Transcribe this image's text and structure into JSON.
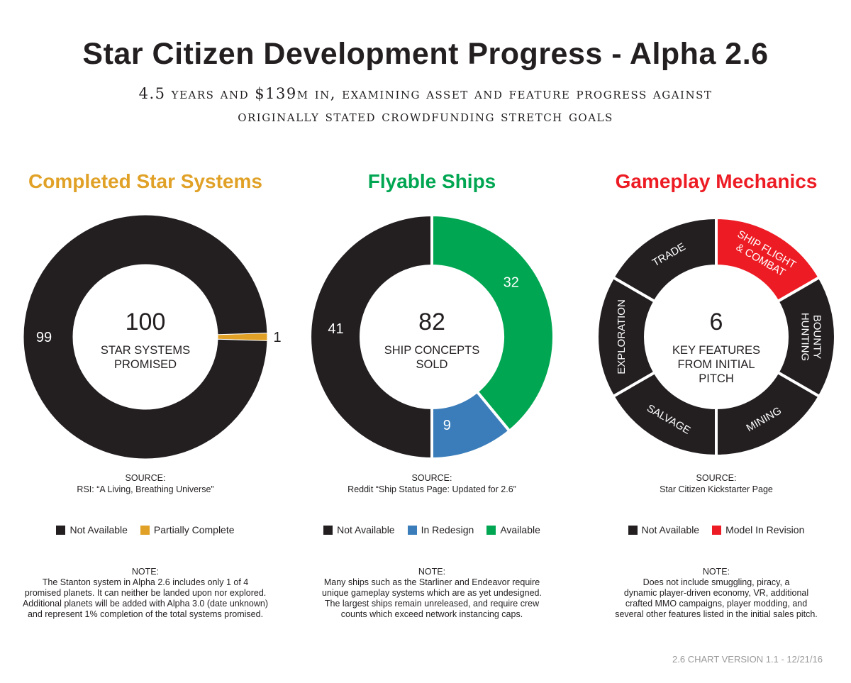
{
  "title": "Star Citizen Development Progress - Alpha 2.6",
  "subtitle": [
    "4.5 years and $139m in, examining asset and feature progress against",
    "originally stated crowdfunding stretch goals"
  ],
  "version": "2.6 CHART VERSION 1.1 - 12/21/16",
  "chart_data": [
    {
      "type": "pie",
      "title": "Completed Star Systems",
      "title_color": "#e0a126",
      "center_number": "100",
      "center_label": [
        "STAR SYSTEMS",
        "PROMISED"
      ],
      "slices": [
        {
          "label": "Partially Complete",
          "value": 1,
          "color": "#e0a126",
          "data_label": "1"
        },
        {
          "label": "Not Available",
          "value": 99,
          "color": "#231f20",
          "data_label": "99"
        }
      ],
      "source": [
        "SOURCE:",
        "RSI: “A Living, Breathing Universe”"
      ],
      "legend": [
        {
          "label": "Not Available",
          "color": "#231f20"
        },
        {
          "label": "Partially Complete",
          "color": "#e0a126"
        }
      ],
      "note": [
        "NOTE:",
        "The Stanton system in Alpha 2.6 includes only 1 of 4",
        "promised planets. It can neither be landed upon nor explored.",
        "Additional planets will be added with Alpha 3.0 (date unknown)",
        "and represent 1% completion of the total systems promised."
      ]
    },
    {
      "type": "pie",
      "title": "Flyable Ships",
      "title_color": "#00a651",
      "center_number": "82",
      "center_label": [
        "SHIP CONCEPTS",
        "SOLD"
      ],
      "slices": [
        {
          "label": "Available",
          "value": 32,
          "color": "#00a651",
          "data_label": "32"
        },
        {
          "label": "In Redesign",
          "value": 9,
          "color": "#3a7dba",
          "data_label": "9"
        },
        {
          "label": "Not Available",
          "value": 41,
          "color": "#231f20",
          "data_label": "41"
        }
      ],
      "source": [
        "SOURCE:",
        "Reddit “Ship Status Page: Updated for 2.6”"
      ],
      "legend": [
        {
          "label": "Not Available",
          "color": "#231f20"
        },
        {
          "label": "In Redesign",
          "color": "#3a7dba"
        },
        {
          "label": "Available",
          "color": "#00a651"
        }
      ],
      "note": [
        "NOTE:",
        "Many ships such as the Starliner and Endeavor require",
        "unique gameplay systems which are as yet undesigned.",
        "The largest ships remain unreleased, and require crew",
        "counts which exceed network instancing caps."
      ]
    },
    {
      "type": "pie",
      "title": "Gameplay Mechanics",
      "title_color": "#ed1c24",
      "center_number": "6",
      "center_label": [
        "KEY FEATURES",
        "FROM INITIAL",
        "PITCH"
      ],
      "slices": [
        {
          "label": "SHIP FLIGHT & COMBAT",
          "value": 1,
          "color": "#ed1c24",
          "data_label": "SHIP FLIGHT & COMBAT"
        },
        {
          "label": "BOUNTY HUNTING",
          "value": 1,
          "color": "#231f20",
          "data_label": "BOUNTY HUNTING"
        },
        {
          "label": "MINING",
          "value": 1,
          "color": "#231f20",
          "data_label": "MINING"
        },
        {
          "label": "SALVAGE",
          "value": 1,
          "color": "#231f20",
          "data_label": "SALVAGE"
        },
        {
          "label": "EXPLORATION",
          "value": 1,
          "color": "#231f20",
          "data_label": "EXPLORATION"
        },
        {
          "label": "TRADE",
          "value": 1,
          "color": "#231f20",
          "data_label": "TRADE"
        }
      ],
      "source": [
        "SOURCE:",
        "Star Citizen Kickstarter Page"
      ],
      "legend": [
        {
          "label": "Not Available",
          "color": "#231f20"
        },
        {
          "label": "Model In Revision",
          "color": "#ed1c24"
        }
      ],
      "note": [
        "NOTE:",
        "Does not include smuggling, piracy, a",
        "dynamic player-driven economy, VR, additional",
        "crafted MMO campaigns, player modding, and",
        "several other features listed in the initial sales pitch."
      ]
    }
  ]
}
